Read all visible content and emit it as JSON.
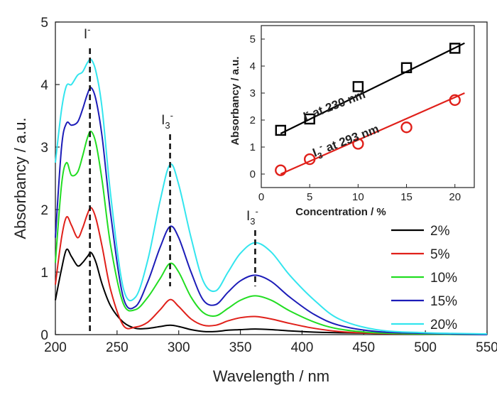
{
  "chart_data": [
    {
      "type": "line",
      "xlabel": "Wavelength / nm",
      "ylabel": "Absorbancy / a.u.",
      "xlim": [
        200,
        550
      ],
      "ylim": [
        0,
        5
      ],
      "xticks": [
        200,
        250,
        300,
        350,
        400,
        450,
        500,
        550
      ],
      "yticks": [
        0,
        1,
        2,
        3,
        4,
        5
      ],
      "grid": false,
      "legend_position": "bottom-right",
      "annotations": [
        {
          "text": "I",
          "sup": "-",
          "x": 228,
          "type": "dashed-vertical"
        },
        {
          "text": "I",
          "sub": "3",
          "sup": "-",
          "x": 293,
          "type": "dashed-vertical"
        },
        {
          "text": "I",
          "sub": "3",
          "sup": "-",
          "x": 362,
          "type": "dashed-vertical"
        }
      ],
      "x": [
        200,
        205,
        209,
        213,
        218,
        222,
        226,
        229,
        233,
        238,
        245,
        255,
        265,
        275,
        285,
        293,
        300,
        310,
        320,
        330,
        340,
        350,
        362,
        375,
        390,
        410,
        430,
        460,
        500,
        550
      ],
      "series": [
        {
          "name": "2%",
          "color": "#000000",
          "values": [
            0.55,
            1.05,
            1.36,
            1.25,
            1.1,
            1.15,
            1.25,
            1.31,
            1.15,
            0.8,
            0.45,
            0.2,
            0.1,
            0.1,
            0.13,
            0.15,
            0.13,
            0.08,
            0.05,
            0.05,
            0.07,
            0.08,
            0.09,
            0.08,
            0.06,
            0.04,
            0.03,
            0.02,
            0.01,
            0.0
          ]
        },
        {
          "name": "5%",
          "color": "#e0201a",
          "values": [
            0.8,
            1.55,
            1.88,
            1.75,
            1.55,
            1.7,
            1.93,
            2.03,
            1.85,
            1.4,
            0.7,
            0.15,
            0.12,
            0.2,
            0.4,
            0.56,
            0.45,
            0.25,
            0.15,
            0.15,
            0.22,
            0.27,
            0.29,
            0.25,
            0.18,
            0.1,
            0.05,
            0.02,
            0.01,
            0.0
          ]
        },
        {
          "name": "10%",
          "color": "#22dd22",
          "values": [
            1.15,
            2.4,
            2.75,
            2.55,
            2.6,
            2.85,
            3.15,
            3.25,
            3.05,
            2.45,
            1.4,
            0.5,
            0.4,
            0.6,
            0.9,
            1.14,
            1.0,
            0.6,
            0.35,
            0.3,
            0.42,
            0.55,
            0.62,
            0.55,
            0.38,
            0.2,
            0.09,
            0.03,
            0.01,
            0.0
          ]
        },
        {
          "name": "15%",
          "color": "#1c1cb8",
          "values": [
            1.55,
            3.0,
            3.38,
            3.35,
            3.4,
            3.6,
            3.85,
            3.95,
            3.75,
            3.15,
            1.9,
            0.6,
            0.45,
            0.85,
            1.4,
            1.73,
            1.55,
            1.0,
            0.55,
            0.48,
            0.68,
            0.86,
            0.95,
            0.85,
            0.6,
            0.32,
            0.15,
            0.05,
            0.02,
            0.0
          ]
        },
        {
          "name": "20%",
          "color": "#33e5ee",
          "values": [
            2.75,
            3.6,
            3.98,
            4.0,
            4.15,
            4.2,
            4.35,
            4.4,
            4.2,
            3.6,
            2.2,
            0.75,
            0.6,
            1.2,
            2.15,
            2.72,
            2.4,
            1.55,
            0.85,
            0.7,
            1.0,
            1.3,
            1.47,
            1.32,
            0.95,
            0.55,
            0.25,
            0.08,
            0.03,
            0.01
          ]
        }
      ]
    },
    {
      "type": "scatter",
      "xlabel": "Concentration / %",
      "ylabel": "Absorbancy / a.u.",
      "xlim": [
        0,
        22
      ],
      "ylim": [
        -0.5,
        5.5
      ],
      "xticks": [
        0,
        5,
        10,
        15,
        20
      ],
      "yticks": [
        0,
        1,
        2,
        3,
        4,
        5
      ],
      "series": [
        {
          "name": "I⁻ at 230 nm",
          "label_main": "I",
          "label_sup": "-",
          "label_rest": " at 230 nm",
          "marker": "square",
          "color": "#000000",
          "x": [
            2,
            5,
            10,
            15,
            20
          ],
          "y": [
            1.62,
            2.04,
            3.24,
            3.94,
            4.66
          ],
          "fit": [
            [
              2,
              1.5
            ],
            [
              21,
              4.85
            ]
          ]
        },
        {
          "name": "I₃⁻ at 293 nm",
          "label_main": "I",
          "label_sub": "3",
          "label_sup": "-",
          "label_rest": " at 293 nm",
          "marker": "circle",
          "color": "#e0201a",
          "x": [
            2,
            5,
            10,
            15,
            20
          ],
          "y": [
            0.14,
            0.55,
            1.12,
            1.73,
            2.74
          ],
          "fit": [
            [
              2,
              0.0
            ],
            [
              21,
              3.0
            ]
          ]
        }
      ]
    }
  ]
}
